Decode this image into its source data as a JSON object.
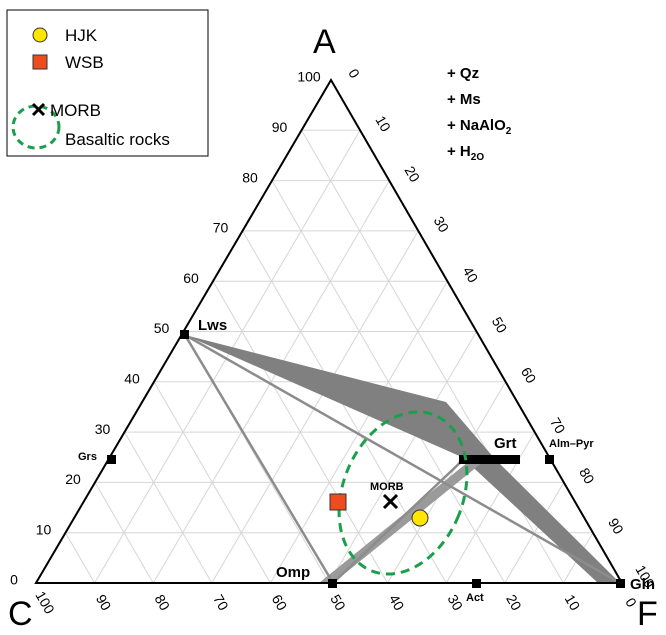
{
  "vertices": {
    "a": "A",
    "c": "C",
    "f": "F"
  },
  "additions": [
    "+ Qz",
    "+ Ms",
    "+ NaAlO",
    "+ H"
  ],
  "addition_subs": {
    "naalo2": "2",
    "h2o": "2O"
  },
  "legend": {
    "items": [
      {
        "label": "HJK",
        "symbol": "yellow-circle",
        "color": "#ffe600"
      },
      {
        "label": "WSB",
        "symbol": "orange-square",
        "color": "#ee4b1e"
      },
      {
        "label": "MORB",
        "symbol": "cross",
        "color": "#000000"
      },
      {
        "label": "Basaltic rocks",
        "symbol": "dashed-ellipse",
        "color": "#1aa04a"
      }
    ]
  },
  "ticks_left": [
    "0",
    "10",
    "20",
    "30",
    "40",
    "50",
    "60",
    "70",
    "80",
    "90",
    "100"
  ],
  "ticks_right": [
    "0",
    "10",
    "20",
    "30",
    "40",
    "50",
    "60",
    "70",
    "80",
    "90",
    "100"
  ],
  "ticks_bottom": [
    "100",
    "90",
    "80",
    "70",
    "60",
    "50",
    "40",
    "30",
    "20",
    "10",
    "0"
  ],
  "phases": {
    "lws": "Lws",
    "grs": "Grs",
    "omp": "Omp",
    "act": "Act",
    "gln": "Gln",
    "grt": "Grt",
    "almpyr": "Alm–Pyr",
    "morb": "MORB"
  },
  "colors": {
    "tie_line": "#8c8c8c",
    "band": "#808080",
    "grid": "#d6d6d6",
    "ellipse": "#1aa04a"
  }
}
